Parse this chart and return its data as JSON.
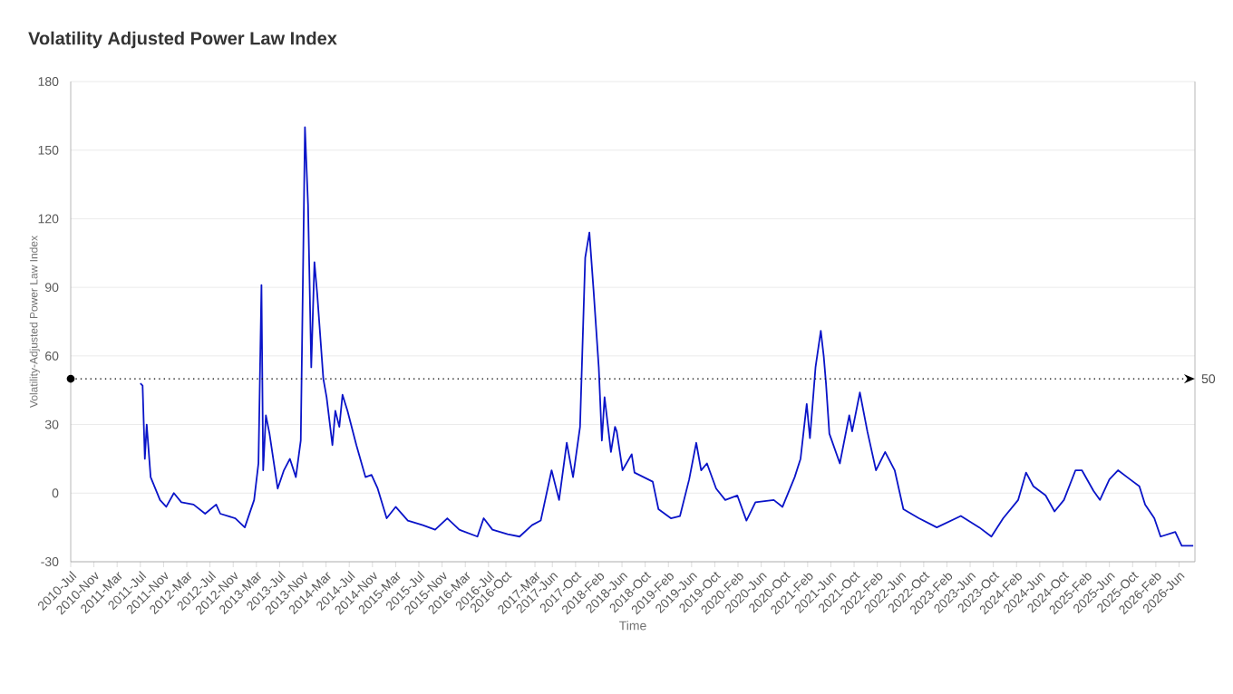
{
  "chart_data": {
    "type": "line",
    "title": "Volatility Adjusted Power Law Index",
    "xlabel": "Time",
    "ylabel": "Volatility-Adjusted Power Law Index",
    "xlim": [
      "2010-07-01",
      "2026-08-24"
    ],
    "xticks": [
      {
        "value": "2010-07",
        "label": "2010-Jul"
      },
      {
        "value": "2010-11",
        "label": "2010-Nov"
      },
      {
        "value": "2011-03",
        "label": "2011-Mar"
      },
      {
        "value": "2011-07",
        "label": "2011-Jul"
      },
      {
        "value": "2011-11",
        "label": "2011-Nov"
      },
      {
        "value": "2012-03",
        "label": "2012-Mar"
      },
      {
        "value": "2012-07",
        "label": "2012-Jul"
      },
      {
        "value": "2012-11",
        "label": "2012-Nov"
      },
      {
        "value": "2013-03",
        "label": "2013-Mar"
      },
      {
        "value": "2013-07",
        "label": "2013-Jul"
      },
      {
        "value": "2013-11",
        "label": "2013-Nov"
      },
      {
        "value": "2014-03",
        "label": "2014-Mar"
      },
      {
        "value": "2014-07",
        "label": "2014-Jul"
      },
      {
        "value": "2014-11",
        "label": "2014-Nov"
      },
      {
        "value": "2015-03",
        "label": "2015-Mar"
      },
      {
        "value": "2015-07",
        "label": "2015-Jul"
      },
      {
        "value": "2015-11",
        "label": "2015-Nov"
      },
      {
        "value": "2016-03",
        "label": "2016-Mar"
      },
      {
        "value": "2016-07",
        "label": "2016-Jul"
      },
      {
        "value": "2016-10",
        "label": "2016-Oct"
      },
      {
        "value": "2017-03",
        "label": "2017-Mar"
      },
      {
        "value": "2017-06",
        "label": "2017-Jun"
      },
      {
        "value": "2017-10",
        "label": "2017-Oct"
      },
      {
        "value": "2018-02",
        "label": "2018-Feb"
      },
      {
        "value": "2018-06",
        "label": "2018-Jun"
      },
      {
        "value": "2018-10",
        "label": "2018-Oct"
      },
      {
        "value": "2019-02",
        "label": "2019-Feb"
      },
      {
        "value": "2019-06",
        "label": "2019-Jun"
      },
      {
        "value": "2019-10",
        "label": "2019-Oct"
      },
      {
        "value": "2020-02",
        "label": "2020-Feb"
      },
      {
        "value": "2020-06",
        "label": "2020-Jun"
      },
      {
        "value": "2020-10",
        "label": "2020-Oct"
      },
      {
        "value": "2021-02",
        "label": "2021-Feb"
      },
      {
        "value": "2021-06",
        "label": "2021-Jun"
      },
      {
        "value": "2021-10",
        "label": "2021-Oct"
      },
      {
        "value": "2022-02",
        "label": "2022-Feb"
      },
      {
        "value": "2022-06",
        "label": "2022-Jun"
      },
      {
        "value": "2022-10",
        "label": "2022-Oct"
      },
      {
        "value": "2023-02",
        "label": "2023-Feb"
      },
      {
        "value": "2023-06",
        "label": "2023-Jun"
      },
      {
        "value": "2023-10",
        "label": "2023-Oct"
      },
      {
        "value": "2024-02",
        "label": "2024-Feb"
      },
      {
        "value": "2024-06",
        "label": "2024-Jun"
      },
      {
        "value": "2024-10",
        "label": "2024-Oct"
      },
      {
        "value": "2025-02",
        "label": "2025-Feb"
      },
      {
        "value": "2025-06",
        "label": "2025-Jun"
      },
      {
        "value": "2025-10",
        "label": "2025-Oct"
      },
      {
        "value": "2026-02",
        "label": "2026-Feb"
      },
      {
        "value": "2026-06",
        "label": "2026-Jun"
      }
    ],
    "ylim": [
      -30,
      180
    ],
    "yticks": [
      -30,
      0,
      30,
      60,
      90,
      120,
      150,
      180
    ],
    "grid": "y",
    "ref_lines": [
      {
        "axis": "y",
        "value": 50,
        "label": "50",
        "line_style": "dotted",
        "color": "#000000"
      }
    ],
    "color": "#0a14c8",
    "x": [
      "2011-07-01",
      "2011-07-13",
      "2011-07-25",
      "2011-08-04",
      "2011-08-25",
      "2011-10-13",
      "2011-11-15",
      "2011-12-25",
      "2012-02-03",
      "2012-04-06",
      "2012-06-06",
      "2012-08-03",
      "2012-08-25",
      "2012-11-12",
      "2013-01-01",
      "2013-02-18",
      "2013-03-12",
      "2013-03-28",
      "2013-04-06",
      "2013-04-20",
      "2013-05-09",
      "2013-06-21",
      "2013-07-24",
      "2013-08-25",
      "2013-09-25",
      "2013-10-21",
      "2013-11-12",
      "2013-11-28",
      "2013-12-15",
      "2014-01-01",
      "2014-01-16",
      "2014-02-16",
      "2014-03-04",
      "2014-04-04",
      "2014-04-19",
      "2014-05-10",
      "2014-05-27",
      "2014-06-22",
      "2014-08-08",
      "2014-09-25",
      "2014-10-27",
      "2014-11-28",
      "2015-01-15",
      "2015-03-01",
      "2015-05-04",
      "2015-07-22",
      "2015-09-25",
      "2015-11-28",
      "2016-01-31",
      "2016-05-04",
      "2016-06-06",
      "2016-07-22",
      "2016-10-10",
      "2016-12-12",
      "2017-02-15",
      "2017-04-01",
      "2017-05-28",
      "2017-07-06",
      "2017-08-16",
      "2017-09-18",
      "2017-10-25",
      "2017-11-21",
      "2017-12-13",
      "2018-01-04",
      "2018-02-01",
      "2018-02-16",
      "2018-03-01",
      "2018-04-04",
      "2018-04-25",
      "2018-05-04",
      "2018-06-04",
      "2018-07-22",
      "2018-08-06",
      "2018-11-10",
      "2018-12-10",
      "2019-02-13",
      "2019-04-01",
      "2019-05-19",
      "2019-06-25",
      "2019-07-21",
      "2019-08-21",
      "2019-10-08",
      "2019-11-25",
      "2020-01-28",
      "2020-03-15",
      "2020-05-01",
      "2020-08-06",
      "2020-09-21",
      "2020-11-24",
      "2020-12-25",
      "2021-01-27",
      "2021-02-12",
      "2021-03-12",
      "2021-04-09",
      "2021-04-24",
      "2021-05-06",
      "2021-05-24",
      "2021-07-18",
      "2021-09-06",
      "2021-09-21",
      "2021-11-01",
      "2021-12-10",
      "2022-01-25",
      "2022-03-12",
      "2022-05-01",
      "2022-06-16",
      "2022-09-06",
      "2022-12-09",
      "2023-04-13",
      "2023-07-19",
      "2023-09-21",
      "2023-11-22",
      "2024-02-09",
      "2024-03-21",
      "2024-04-28",
      "2024-07-01",
      "2024-08-18",
      "2024-10-06",
      "2024-12-06",
      "2025-01-09",
      "2025-03-09",
      "2025-04-12",
      "2025-06-01",
      "2025-07-16",
      "2025-09-18",
      "2025-11-06",
      "2025-12-06",
      "2026-01-24",
      "2026-02-24",
      "2026-05-12",
      "2026-06-15",
      "2026-08-15"
    ],
    "values": [
      48,
      47,
      15,
      30,
      7,
      -3,
      -6,
      0,
      -4,
      -5,
      -9,
      -5,
      -9,
      -11,
      -15,
      -3,
      13,
      91,
      10,
      34,
      26,
      2,
      10,
      15,
      7,
      23,
      160,
      126,
      55,
      101,
      87,
      50,
      42,
      21,
      36,
      29,
      43,
      36,
      21,
      7,
      8,
      2,
      -11,
      -6,
      -12,
      -14,
      -16,
      -11,
      -16,
      -19,
      -11,
      -16,
      -18,
      -19,
      -14,
      -12,
      10,
      -3,
      22,
      7,
      29,
      103,
      114,
      89,
      55,
      23,
      42,
      18,
      29,
      27,
      10,
      17,
      9,
      5,
      -7,
      -11,
      -10,
      6,
      22,
      10,
      13,
      2,
      -3,
      -1,
      -12,
      -4,
      -3,
      -6,
      7,
      15,
      39,
      24,
      55,
      71,
      60,
      48,
      26,
      13,
      34,
      27,
      44,
      27,
      10,
      18,
      10,
      -7,
      -11,
      -15,
      -10,
      -15,
      -19,
      -11,
      -3,
      9,
      3,
      -1,
      -8,
      -3,
      10,
      10,
      1,
      -3,
      6,
      10,
      6,
      3,
      -5,
      -11,
      -19,
      -17,
      -23,
      -23
    ]
  }
}
